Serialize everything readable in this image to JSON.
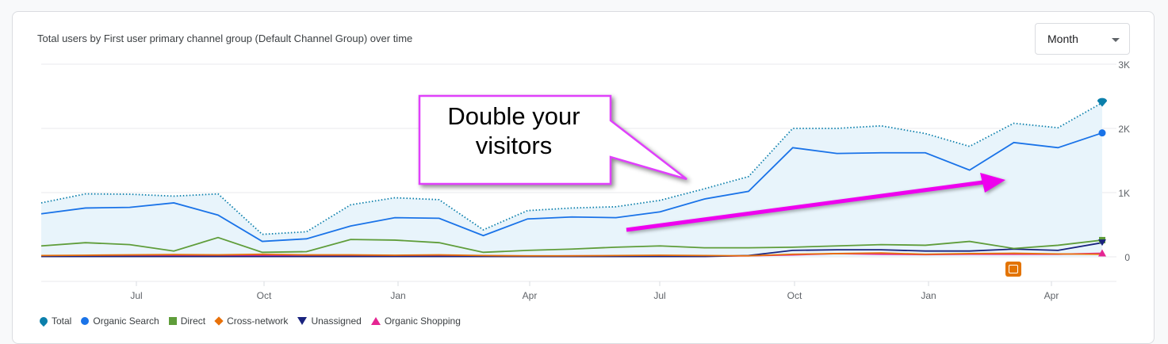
{
  "header": {
    "title": "Total users by First user primary channel group (Default Channel Group) over time",
    "period_select": "Month"
  },
  "callout": {
    "line1": "Double your",
    "line2": "visitors"
  },
  "colors": {
    "total": "#0b7fab",
    "organic_search": "#1a73e8",
    "direct": "#5f9d3a",
    "cross_network": "#e8710a",
    "unassigned": "#1a237e",
    "organic_shopping": "#e52592",
    "callout_border": "#e040fb",
    "arrow": "#ee00ee",
    "annotation": "#e37400"
  },
  "chart_data": {
    "type": "line",
    "x_ticks": [
      "Jul",
      "Oct",
      "Jan",
      "Apr",
      "Jul",
      "Oct",
      "Jan",
      "Apr"
    ],
    "y_ticks": [
      "3K",
      "2K",
      "1K",
      "0"
    ],
    "ylim": [
      0,
      3000
    ],
    "grid": true,
    "legend_position": "bottom-left",
    "series": [
      {
        "name": "Total",
        "style": "dotted",
        "values": [
          840,
          980,
          975,
          945,
          980,
          350,
          390,
          810,
          920,
          890,
          420,
          720,
          760,
          780,
          880,
          1060,
          1250,
          2000,
          2000,
          2040,
          1920,
          1720,
          2080,
          2010,
          2400
        ]
      },
      {
        "name": "Organic Search",
        "values": [
          670,
          760,
          770,
          840,
          650,
          240,
          280,
          480,
          610,
          600,
          330,
          590,
          620,
          610,
          700,
          900,
          1020,
          1700,
          1610,
          1620,
          1620,
          1350,
          1780,
          1700,
          1930
        ]
      },
      {
        "name": "Direct",
        "values": [
          170,
          220,
          190,
          90,
          300,
          70,
          80,
          270,
          260,
          220,
          70,
          100,
          120,
          150,
          170,
          140,
          140,
          150,
          170,
          190,
          180,
          240,
          130,
          180,
          260
        ]
      },
      {
        "name": "Cross-network",
        "values": [
          20,
          25,
          30,
          35,
          30,
          40,
          30,
          30,
          25,
          30,
          20,
          15,
          15,
          20,
          25,
          20,
          15,
          40,
          50,
          60,
          40,
          50,
          55,
          45,
          40
        ]
      },
      {
        "name": "Unassigned",
        "values": [
          5,
          5,
          5,
          5,
          5,
          5,
          5,
          5,
          5,
          5,
          5,
          5,
          5,
          5,
          5,
          5,
          20,
          100,
          110,
          110,
          90,
          90,
          120,
          100,
          220
        ]
      },
      {
        "name": "Organic Shopping",
        "values": [
          10,
          10,
          15,
          20,
          20,
          20,
          10,
          25,
          20,
          15,
          10,
          10,
          15,
          15,
          10,
          10,
          15,
          30,
          50,
          40,
          35,
          40,
          40,
          40,
          55
        ]
      }
    ]
  },
  "legend": [
    {
      "label": "Total",
      "icon": "marker-pin-icon",
      "color": "#0b7fab"
    },
    {
      "label": "Organic Search",
      "icon": "circle-icon",
      "color": "#1a73e8"
    },
    {
      "label": "Direct",
      "icon": "square-icon",
      "color": "#5f9d3a"
    },
    {
      "label": "Cross-network",
      "icon": "diamond-icon",
      "color": "#e8710a"
    },
    {
      "label": "Unassigned",
      "icon": "triangle-down-icon",
      "color": "#1a237e"
    },
    {
      "label": "Organic Shopping",
      "icon": "triangle-up-icon",
      "color": "#e52592"
    }
  ]
}
